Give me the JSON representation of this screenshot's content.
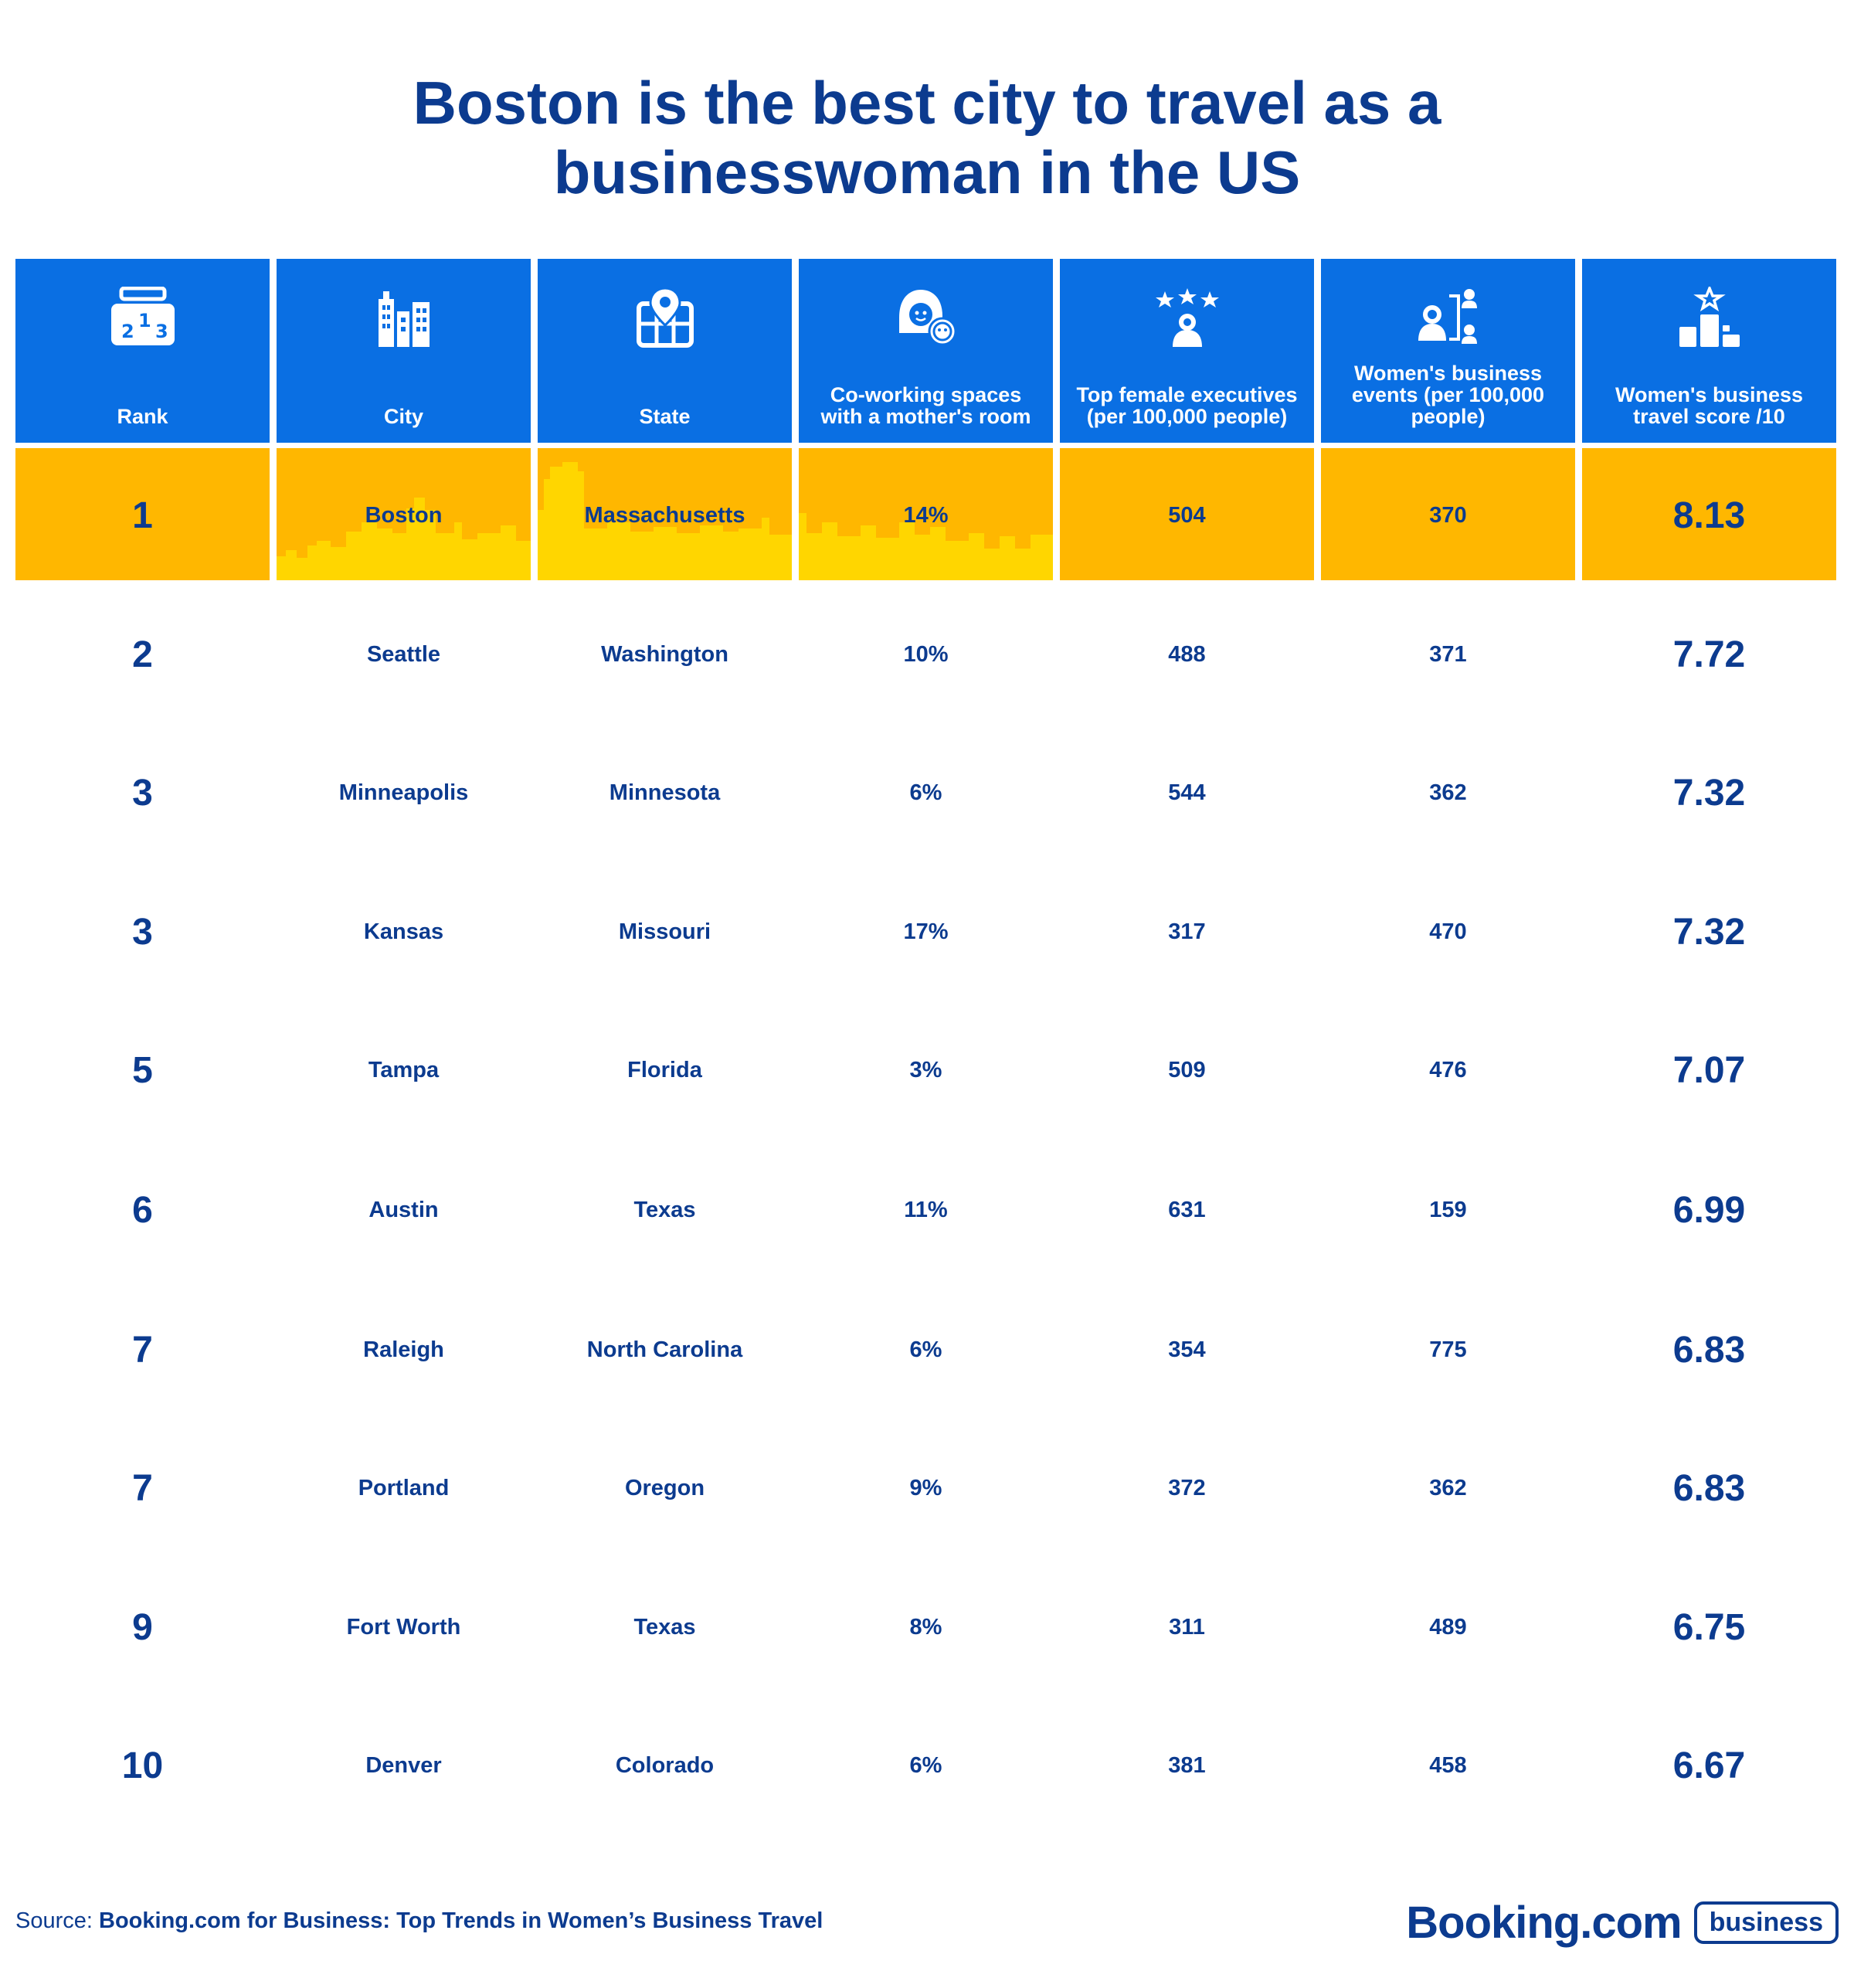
{
  "title": {
    "line1": "Boston is the best city to travel as a",
    "line2": "businesswoman in the US"
  },
  "headers": [
    {
      "label": "Rank",
      "icon": "podium-rank-icon"
    },
    {
      "label": "City",
      "icon": "city-buildings-icon"
    },
    {
      "label": "State",
      "icon": "map-pin-icon"
    },
    {
      "label": "Co-working spaces\nwith a mother's room",
      "icon": "mother-baby-icon"
    },
    {
      "label": "Top female executives\n(per 100,000 people)",
      "icon": "star-executive-icon"
    },
    {
      "label": "Women's business\nevents (per 100,000\npeople)",
      "icon": "women-network-icon"
    },
    {
      "label": "Women's business\ntravel score /10",
      "icon": "score-podium-icon"
    }
  ],
  "colors": {
    "header_bg": "#0a6fe3",
    "highlight_bg": "#ffb700",
    "skyline": "#ffd600",
    "text": "#0c3b8f"
  },
  "chart_data": {
    "type": "table",
    "title": "Boston is the best city to travel as a businesswoman in the US",
    "columns": [
      "Rank",
      "City",
      "State",
      "Co-working spaces with a mother's room",
      "Top female executives (per 100,000 people)",
      "Women's business events (per 100,000 people)",
      "Women's business travel score /10"
    ],
    "rows": [
      [
        "1",
        "Boston",
        "Massachusetts",
        "14%",
        "504",
        "370",
        "8.13"
      ],
      [
        "2",
        "Seattle",
        "Washington",
        "10%",
        "488",
        "371",
        "7.72"
      ],
      [
        "3",
        "Minneapolis",
        "Minnesota",
        "6%",
        "544",
        "362",
        "7.32"
      ],
      [
        "3",
        "Kansas",
        "Missouri",
        "17%",
        "317",
        "470",
        "7.32"
      ],
      [
        "5",
        "Tampa",
        "Florida",
        "3%",
        "509",
        "476",
        "7.07"
      ],
      [
        "6",
        "Austin",
        "Texas",
        "11%",
        "631",
        "159",
        "6.99"
      ],
      [
        "7",
        "Raleigh",
        "North Carolina",
        "6%",
        "354",
        "775",
        "6.83"
      ],
      [
        "7",
        "Portland",
        "Oregon",
        "9%",
        "372",
        "362",
        "6.83"
      ],
      [
        "9",
        "Fort Worth",
        "Texas",
        "8%",
        "311",
        "489",
        "6.75"
      ],
      [
        "10",
        "Denver",
        "Colorado",
        "6%",
        "381",
        "458",
        "6.67"
      ]
    ],
    "highlight_row": 0
  },
  "source": {
    "label": "Source:",
    "text": "Booking.com for Business: Top Trends in Women’s Business Travel"
  },
  "brand": {
    "name": "Booking.com",
    "badge": "business"
  }
}
